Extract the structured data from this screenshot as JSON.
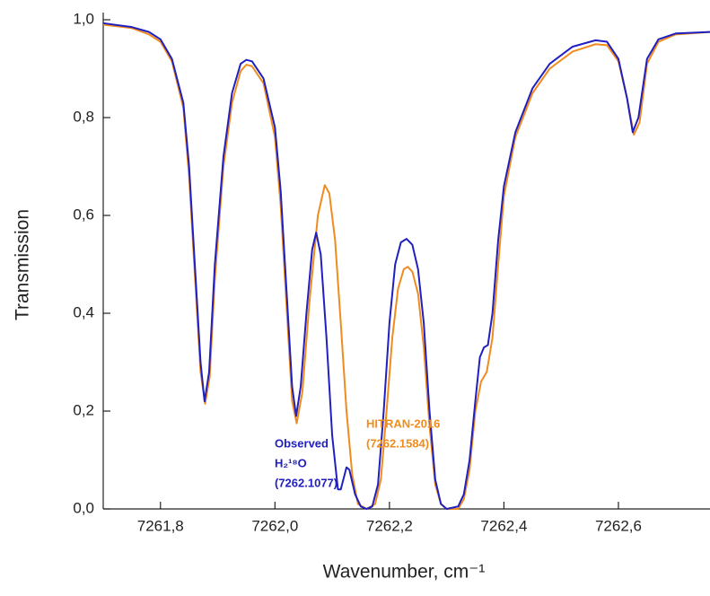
{
  "chart_data": {
    "type": "line",
    "xlabel": "Wavenumber, cm⁻¹",
    "ylabel": "Transmission",
    "xlim": [
      7261.7,
      7262.76
    ],
    "ylim": [
      0,
      1
    ],
    "xticks": [
      {
        "value": 7261.8,
        "label": "7261,8"
      },
      {
        "value": 7262.0,
        "label": "7262,0"
      },
      {
        "value": 7262.2,
        "label": "7262,2"
      },
      {
        "value": 7262.4,
        "label": "7262,4"
      },
      {
        "value": 7262.6,
        "label": "7262,6"
      }
    ],
    "yticks": [
      {
        "value": 0,
        "label": "0,0"
      },
      {
        "value": 0.2,
        "label": "0,2"
      },
      {
        "value": 0.4,
        "label": "0,4"
      },
      {
        "value": 0.6,
        "label": "0,6"
      },
      {
        "value": 0.8,
        "label": "0,8"
      },
      {
        "value": 1,
        "label": "1,0"
      }
    ],
    "series": [
      {
        "name": "Observed",
        "color": "#2020c0",
        "x": [
          7261.7,
          7261.75,
          7261.78,
          7261.8,
          7261.82,
          7261.84,
          7261.85,
          7261.86,
          7261.87,
          7261.877,
          7261.885,
          7261.895,
          7261.91,
          7261.925,
          7261.94,
          7261.95,
          7261.96,
          7261.98,
          7262.0,
          7262.01,
          7262.02,
          7262.03,
          7262.037,
          7262.045,
          7262.055,
          7262.065,
          7262.072,
          7262.08,
          7262.09,
          7262.1,
          7262.11,
          7262.115,
          7262.125,
          7262.13,
          7262.14,
          7262.15,
          7262.16,
          7262.17,
          7262.18,
          7262.19,
          7262.2,
          7262.21,
          7262.22,
          7262.23,
          7262.24,
          7262.25,
          7262.26,
          7262.27,
          7262.28,
          7262.29,
          7262.3,
          7262.32,
          7262.33,
          7262.34,
          7262.35,
          7262.358,
          7262.365,
          7262.372,
          7262.38,
          7262.39,
          7262.4,
          7262.42,
          7262.45,
          7262.48,
          7262.52,
          7262.56,
          7262.58,
          7262.6,
          7262.615,
          7262.625,
          7262.635,
          7262.65,
          7262.67,
          7262.7,
          7262.76
        ],
        "values": [
          0.993,
          0.985,
          0.975,
          0.96,
          0.92,
          0.83,
          0.7,
          0.5,
          0.3,
          0.22,
          0.28,
          0.5,
          0.72,
          0.85,
          0.91,
          0.918,
          0.915,
          0.88,
          0.78,
          0.65,
          0.45,
          0.25,
          0.19,
          0.25,
          0.4,
          0.53,
          0.565,
          0.52,
          0.35,
          0.15,
          0.04,
          0.04,
          0.085,
          0.08,
          0.03,
          0.005,
          0.0,
          0.005,
          0.05,
          0.2,
          0.38,
          0.5,
          0.545,
          0.552,
          0.54,
          0.49,
          0.38,
          0.2,
          0.06,
          0.01,
          0.0,
          0.005,
          0.03,
          0.1,
          0.22,
          0.31,
          0.33,
          0.335,
          0.4,
          0.55,
          0.66,
          0.77,
          0.86,
          0.91,
          0.945,
          0.958,
          0.955,
          0.92,
          0.84,
          0.77,
          0.8,
          0.92,
          0.96,
          0.972,
          0.975
        ]
      },
      {
        "name": "HITRAN-2016",
        "color": "#f08c1e",
        "x": [
          7261.7,
          7261.75,
          7261.78,
          7261.8,
          7261.82,
          7261.84,
          7261.85,
          7261.86,
          7261.87,
          7261.878,
          7261.886,
          7261.895,
          7261.91,
          7261.925,
          7261.94,
          7261.95,
          7261.96,
          7261.98,
          7262.0,
          7262.01,
          7262.02,
          7262.03,
          7262.038,
          7262.048,
          7262.06,
          7262.075,
          7262.087,
          7262.095,
          7262.105,
          7262.115,
          7262.125,
          7262.135,
          7262.145,
          7262.16,
          7262.175,
          7262.185,
          7262.195,
          7262.205,
          7262.215,
          7262.225,
          7262.232,
          7262.24,
          7262.25,
          7262.26,
          7262.27,
          7262.28,
          7262.29,
          7262.3,
          7262.32,
          7262.33,
          7262.34,
          7262.35,
          7262.36,
          7262.37,
          7262.38,
          7262.39,
          7262.4,
          7262.42,
          7262.45,
          7262.48,
          7262.52,
          7262.56,
          7262.58,
          7262.6,
          7262.615,
          7262.627,
          7262.637,
          7262.65,
          7262.67,
          7262.7,
          7262.76
        ],
        "values": [
          0.99,
          0.983,
          0.97,
          0.955,
          0.915,
          0.82,
          0.68,
          0.48,
          0.28,
          0.215,
          0.27,
          0.47,
          0.7,
          0.83,
          0.895,
          0.908,
          0.905,
          0.87,
          0.76,
          0.62,
          0.42,
          0.22,
          0.175,
          0.24,
          0.42,
          0.6,
          0.662,
          0.645,
          0.55,
          0.38,
          0.2,
          0.07,
          0.01,
          0.0,
          0.01,
          0.06,
          0.2,
          0.35,
          0.45,
          0.49,
          0.495,
          0.485,
          0.44,
          0.33,
          0.17,
          0.05,
          0.01,
          0.0,
          0.0,
          0.02,
          0.08,
          0.2,
          0.26,
          0.28,
          0.35,
          0.5,
          0.64,
          0.76,
          0.85,
          0.9,
          0.935,
          0.95,
          0.948,
          0.915,
          0.84,
          0.765,
          0.79,
          0.91,
          0.955,
          0.97,
          0.975
        ]
      }
    ],
    "annotations": [
      {
        "lines": [
          "Observed",
          "H₂¹⁸O",
          "(7262.1077)"
        ],
        "color": "#2020c0"
      },
      {
        "lines": [
          "HITRAN-2016",
          "(7262.1584)"
        ],
        "color": "#f08c1e"
      }
    ]
  }
}
